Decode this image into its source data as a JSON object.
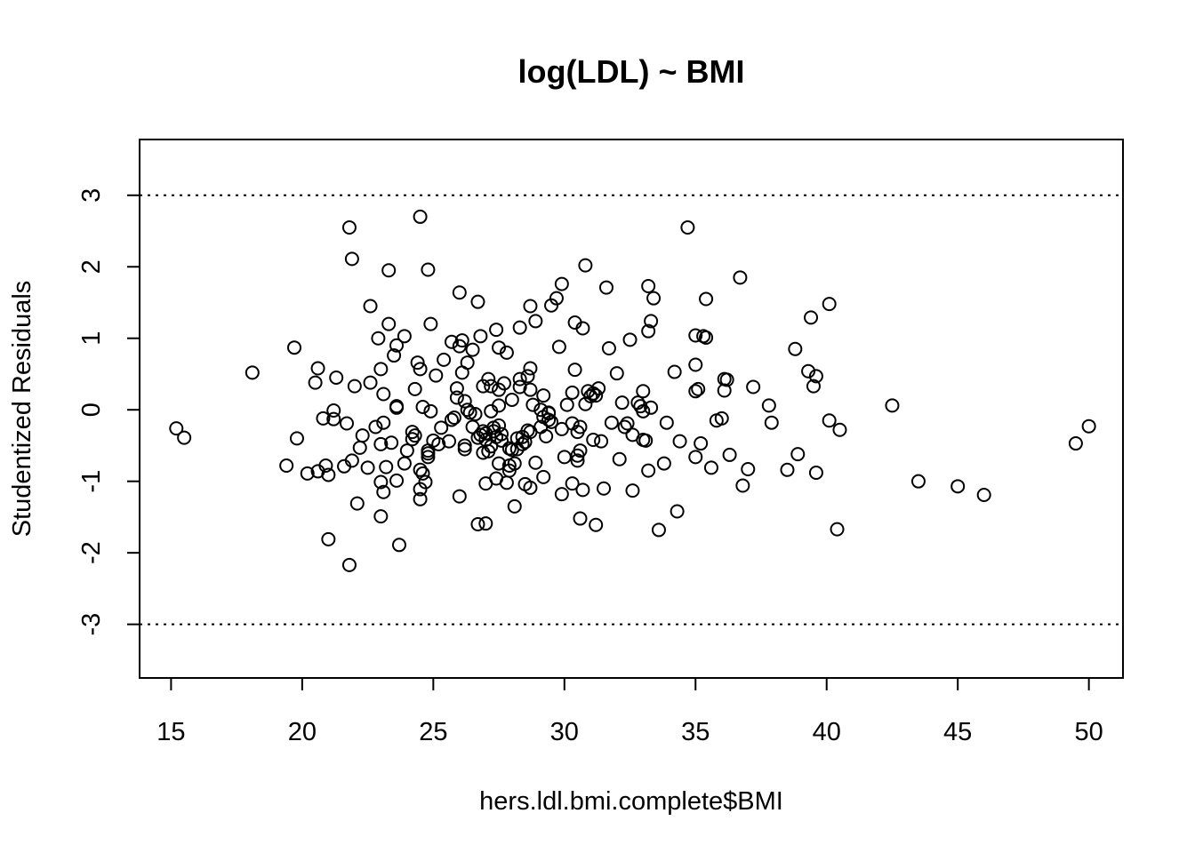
{
  "chart_data": {
    "type": "scatter",
    "title": "log(LDL) ~ BMI",
    "xlabel": "hers.ldl.bmi.complete$BMI",
    "ylabel": "Studentized Residuals",
    "xlim": [
      13.8,
      51.3
    ],
    "ylim": [
      -3.75,
      3.78
    ],
    "x_ticks": [
      15,
      20,
      25,
      30,
      35,
      40,
      45,
      50
    ],
    "x_tick_labels": [
      "15",
      "20",
      "25",
      "30",
      "35",
      "40",
      "45",
      "50"
    ],
    "y_ticks": [
      -3,
      -2,
      -1,
      0,
      1,
      2,
      3
    ],
    "y_tick_labels": [
      "-3",
      "-2",
      "-1",
      "0",
      "1",
      "2",
      "3"
    ],
    "reference_lines": [
      3,
      -3
    ],
    "grid": false,
    "legend": "none",
    "points": [
      [
        15.2,
        -0.26
      ],
      [
        15.5,
        -0.39
      ],
      [
        18.1,
        0.52
      ],
      [
        19.4,
        -0.78
      ],
      [
        19.7,
        0.87
      ],
      [
        19.8,
        -0.4
      ],
      [
        20.2,
        -0.89
      ],
      [
        20.5,
        0.38
      ],
      [
        20.6,
        0.58
      ],
      [
        20.6,
        -0.86
      ],
      [
        20.8,
        -0.12
      ],
      [
        20.9,
        -0.78
      ],
      [
        21.0,
        -0.91
      ],
      [
        21.0,
        -1.81
      ],
      [
        21.2,
        -0.01
      ],
      [
        21.2,
        -0.13
      ],
      [
        21.3,
        0.45
      ],
      [
        21.6,
        -0.79
      ],
      [
        21.7,
        -0.19
      ],
      [
        21.8,
        2.55
      ],
      [
        21.8,
        -2.17
      ],
      [
        21.9,
        -0.71
      ],
      [
        21.9,
        2.11
      ],
      [
        22.0,
        0.33
      ],
      [
        22.1,
        -1.31
      ],
      [
        22.2,
        -0.53
      ],
      [
        22.3,
        -0.36
      ],
      [
        22.5,
        -0.81
      ],
      [
        22.6,
        0.38
      ],
      [
        22.6,
        1.45
      ],
      [
        22.8,
        -0.24
      ],
      [
        22.9,
        1.0
      ],
      [
        23.0,
        0.57
      ],
      [
        23.0,
        -0.48
      ],
      [
        23.0,
        -1.01
      ],
      [
        23.0,
        -1.49
      ],
      [
        23.1,
        0.22
      ],
      [
        23.1,
        -1.15
      ],
      [
        23.1,
        -0.18
      ],
      [
        23.2,
        -0.8
      ],
      [
        23.3,
        1.95
      ],
      [
        23.3,
        1.2
      ],
      [
        23.4,
        -0.46
      ],
      [
        23.5,
        0.76
      ],
      [
        23.6,
        0.05
      ],
      [
        23.6,
        0.03
      ],
      [
        23.6,
        0.9
      ],
      [
        23.6,
        -0.99
      ],
      [
        23.7,
        -1.89
      ],
      [
        23.9,
        1.03
      ],
      [
        23.9,
        -0.75
      ],
      [
        24.0,
        -0.57
      ],
      [
        24.2,
        -0.31
      ],
      [
        24.2,
        -0.41
      ],
      [
        24.3,
        0.29
      ],
      [
        24.3,
        -0.36
      ],
      [
        24.4,
        0.66
      ],
      [
        24.5,
        0.57
      ],
      [
        24.5,
        2.7
      ],
      [
        24.5,
        -0.84
      ],
      [
        24.5,
        -1.25
      ],
      [
        24.5,
        -1.11
      ],
      [
        24.6,
        0.04
      ],
      [
        24.6,
        -0.89
      ],
      [
        24.7,
        -1.01
      ],
      [
        24.8,
        1.96
      ],
      [
        24.8,
        -0.57
      ],
      [
        24.8,
        -0.61
      ],
      [
        24.8,
        -0.66
      ],
      [
        24.9,
        -0.02
      ],
      [
        24.9,
        1.2
      ],
      [
        25.0,
        -0.43
      ],
      [
        25.1,
        0.48
      ],
      [
        25.2,
        -0.48
      ],
      [
        25.3,
        -0.25
      ],
      [
        25.4,
        0.7
      ],
      [
        25.6,
        -0.44
      ],
      [
        25.7,
        -0.14
      ],
      [
        25.7,
        0.95
      ],
      [
        25.8,
        -0.11
      ],
      [
        25.9,
        0.3
      ],
      [
        25.9,
        0.17
      ],
      [
        26.0,
        1.64
      ],
      [
        26.0,
        -1.21
      ],
      [
        26.0,
        0.89
      ],
      [
        26.1,
        0.97
      ],
      [
        26.1,
        0.52
      ],
      [
        26.2,
        -0.5
      ],
      [
        26.2,
        0.12
      ],
      [
        26.2,
        -0.55
      ],
      [
        26.3,
        0.66
      ],
      [
        26.3,
        0.0
      ],
      [
        26.4,
        -0.04
      ],
      [
        26.5,
        0.84
      ],
      [
        26.5,
        -0.24
      ],
      [
        26.6,
        -0.06
      ],
      [
        26.7,
        -0.39
      ],
      [
        26.7,
        1.51
      ],
      [
        26.7,
        -1.6
      ],
      [
        26.8,
        -0.35
      ],
      [
        26.8,
        1.03
      ],
      [
        26.9,
        0.33
      ],
      [
        26.9,
        -0.3
      ],
      [
        26.9,
        -0.6
      ],
      [
        27.0,
        -1.03
      ],
      [
        27.0,
        -1.59
      ],
      [
        27.0,
        -0.42
      ],
      [
        27.0,
        -0.33
      ],
      [
        27.1,
        0.43
      ],
      [
        27.1,
        -0.58
      ],
      [
        27.2,
        0.33
      ],
      [
        27.2,
        -0.02
      ],
      [
        27.2,
        -0.51
      ],
      [
        27.3,
        -0.3
      ],
      [
        27.3,
        -0.25
      ],
      [
        27.4,
        1.12
      ],
      [
        27.4,
        -0.38
      ],
      [
        27.4,
        -0.96
      ],
      [
        27.5,
        0.28
      ],
      [
        27.5,
        0.87
      ],
      [
        27.5,
        -0.75
      ],
      [
        27.5,
        0.06
      ],
      [
        27.5,
        -0.22
      ],
      [
        27.6,
        -0.34
      ],
      [
        27.6,
        -0.43
      ],
      [
        27.7,
        0.37
      ],
      [
        27.8,
        -1.02
      ],
      [
        27.8,
        0.8
      ],
      [
        27.9,
        -0.54
      ],
      [
        27.9,
        -0.78
      ],
      [
        27.9,
        -0.85
      ],
      [
        28.0,
        0.14
      ],
      [
        28.0,
        -0.56
      ],
      [
        28.1,
        -1.35
      ],
      [
        28.1,
        -0.75
      ],
      [
        28.2,
        -0.55
      ],
      [
        28.2,
        -0.4
      ],
      [
        28.3,
        0.43
      ],
      [
        28.3,
        0.32
      ],
      [
        28.3,
        1.15
      ],
      [
        28.4,
        -0.38
      ],
      [
        28.4,
        -0.48
      ],
      [
        28.5,
        -1.04
      ],
      [
        28.5,
        -0.45
      ],
      [
        28.6,
        -0.29
      ],
      [
        28.6,
        0.47
      ],
      [
        28.7,
        -1.09
      ],
      [
        28.7,
        1.45
      ],
      [
        28.7,
        0.58
      ],
      [
        28.7,
        0.28
      ],
      [
        28.7,
        -0.31
      ],
      [
        28.8,
        0.07
      ],
      [
        28.9,
        -0.74
      ],
      [
        28.9,
        1.24
      ],
      [
        29.1,
        -0.24
      ],
      [
        29.1,
        0.0
      ],
      [
        29.2,
        0.2
      ],
      [
        29.2,
        -0.94
      ],
      [
        29.2,
        -0.1
      ],
      [
        29.3,
        -0.37
      ],
      [
        29.4,
        -0.14
      ],
      [
        29.4,
        -0.05
      ],
      [
        29.4,
        -0.04
      ],
      [
        29.5,
        1.46
      ],
      [
        29.5,
        -0.17
      ],
      [
        29.7,
        1.56
      ],
      [
        29.8,
        0.88
      ],
      [
        29.9,
        -1.18
      ],
      [
        29.9,
        1.76
      ],
      [
        29.9,
        -0.27
      ],
      [
        30.0,
        -0.66
      ],
      [
        30.1,
        0.07
      ],
      [
        30.3,
        0.24
      ],
      [
        30.3,
        -1.03
      ],
      [
        30.3,
        -0.19
      ],
      [
        30.4,
        1.22
      ],
      [
        30.4,
        0.56
      ],
      [
        30.5,
        -0.64
      ],
      [
        30.5,
        -0.71
      ],
      [
        30.5,
        -0.31
      ],
      [
        30.6,
        -0.24
      ],
      [
        30.6,
        -0.57
      ],
      [
        30.6,
        -1.52
      ],
      [
        30.7,
        1.14
      ],
      [
        30.7,
        -1.12
      ],
      [
        30.8,
        2.02
      ],
      [
        30.8,
        0.08
      ],
      [
        30.9,
        0.26
      ],
      [
        31.0,
        0.19
      ],
      [
        31.1,
        -0.42
      ],
      [
        31.1,
        0.23
      ],
      [
        31.2,
        -1.61
      ],
      [
        31.2,
        0.2
      ],
      [
        31.3,
        0.3
      ],
      [
        31.4,
        -0.44
      ],
      [
        31.5,
        -1.1
      ],
      [
        31.6,
        1.71
      ],
      [
        31.7,
        0.86
      ],
      [
        31.8,
        -0.18
      ],
      [
        32.0,
        0.51
      ],
      [
        32.1,
        -0.69
      ],
      [
        32.2,
        0.1
      ],
      [
        32.3,
        -0.24
      ],
      [
        32.4,
        -0.19
      ],
      [
        32.5,
        0.98
      ],
      [
        32.6,
        -0.35
      ],
      [
        32.6,
        -1.13
      ],
      [
        32.8,
        0.1
      ],
      [
        32.9,
        0.05
      ],
      [
        33.0,
        -0.02
      ],
      [
        33.0,
        0.26
      ],
      [
        33.0,
        -0.42
      ],
      [
        33.1,
        -0.43
      ],
      [
        33.2,
        1.1
      ],
      [
        33.2,
        1.73
      ],
      [
        33.2,
        -0.85
      ],
      [
        33.3,
        1.24
      ],
      [
        33.3,
        0.03
      ],
      [
        33.4,
        1.56
      ],
      [
        33.6,
        -1.68
      ],
      [
        33.8,
        -0.75
      ],
      [
        33.9,
        -0.18
      ],
      [
        34.2,
        0.53
      ],
      [
        34.3,
        -1.42
      ],
      [
        34.4,
        -0.44
      ],
      [
        34.7,
        2.55
      ],
      [
        35.0,
        0.63
      ],
      [
        35.0,
        1.04
      ],
      [
        35.0,
        -0.66
      ],
      [
        35.0,
        0.26
      ],
      [
        35.1,
        0.29
      ],
      [
        35.2,
        -0.47
      ],
      [
        35.3,
        1.03
      ],
      [
        35.4,
        1.01
      ],
      [
        35.4,
        1.55
      ],
      [
        35.6,
        -0.81
      ],
      [
        35.8,
        -0.15
      ],
      [
        36.0,
        -0.12
      ],
      [
        36.1,
        0.43
      ],
      [
        36.1,
        0.27
      ],
      [
        36.2,
        0.42
      ],
      [
        36.3,
        -0.63
      ],
      [
        36.7,
        1.85
      ],
      [
        36.8,
        -1.06
      ],
      [
        37.0,
        -0.83
      ],
      [
        37.2,
        0.32
      ],
      [
        37.8,
        0.06
      ],
      [
        37.9,
        -0.18
      ],
      [
        38.5,
        -0.84
      ],
      [
        38.8,
        0.85
      ],
      [
        38.9,
        -0.62
      ],
      [
        39.3,
        0.54
      ],
      [
        39.4,
        1.29
      ],
      [
        39.5,
        0.33
      ],
      [
        39.6,
        0.47
      ],
      [
        39.6,
        -0.88
      ],
      [
        40.1,
        1.48
      ],
      [
        40.1,
        -0.15
      ],
      [
        40.4,
        -1.67
      ],
      [
        40.5,
        -0.28
      ],
      [
        42.5,
        0.06
      ],
      [
        43.5,
        -1.0
      ],
      [
        45.0,
        -1.07
      ],
      [
        46.0,
        -1.19
      ],
      [
        49.5,
        -0.47
      ],
      [
        50.0,
        -0.23
      ]
    ]
  }
}
